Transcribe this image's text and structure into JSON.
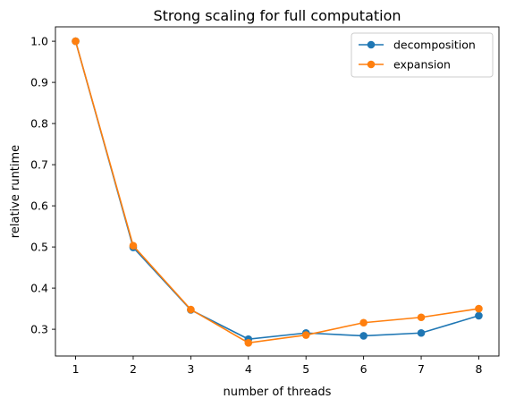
{
  "chart_data": {
    "type": "line",
    "title": "Strong scaling for full computation",
    "xlabel": "number of threads",
    "ylabel": "relative runtime",
    "x": [
      1,
      2,
      3,
      4,
      5,
      6,
      7,
      8
    ],
    "x_ticks": [
      "1",
      "2",
      "3",
      "4",
      "5",
      "6",
      "7",
      "8"
    ],
    "y_ticks": [
      "0.3",
      "0.4",
      "0.5",
      "0.6",
      "0.7",
      "0.8",
      "0.9",
      "1.0"
    ],
    "y_tick_values": [
      0.3,
      0.4,
      0.5,
      0.6,
      0.7,
      0.8,
      0.9,
      1.0
    ],
    "xlim": [
      0.65,
      8.35
    ],
    "ylim": [
      0.235,
      1.035
    ],
    "grid": false,
    "legend_position": "upper right",
    "series": [
      {
        "name": "decomposition",
        "color": "#1f77b4",
        "marker": "circle",
        "values": [
          1.0,
          0.499,
          0.347,
          0.276,
          0.291,
          0.284,
          0.291,
          0.333
        ]
      },
      {
        "name": "expansion",
        "color": "#ff7f0e",
        "marker": "circle",
        "values": [
          1.0,
          0.503,
          0.348,
          0.267,
          0.286,
          0.316,
          0.329,
          0.35
        ]
      }
    ]
  }
}
